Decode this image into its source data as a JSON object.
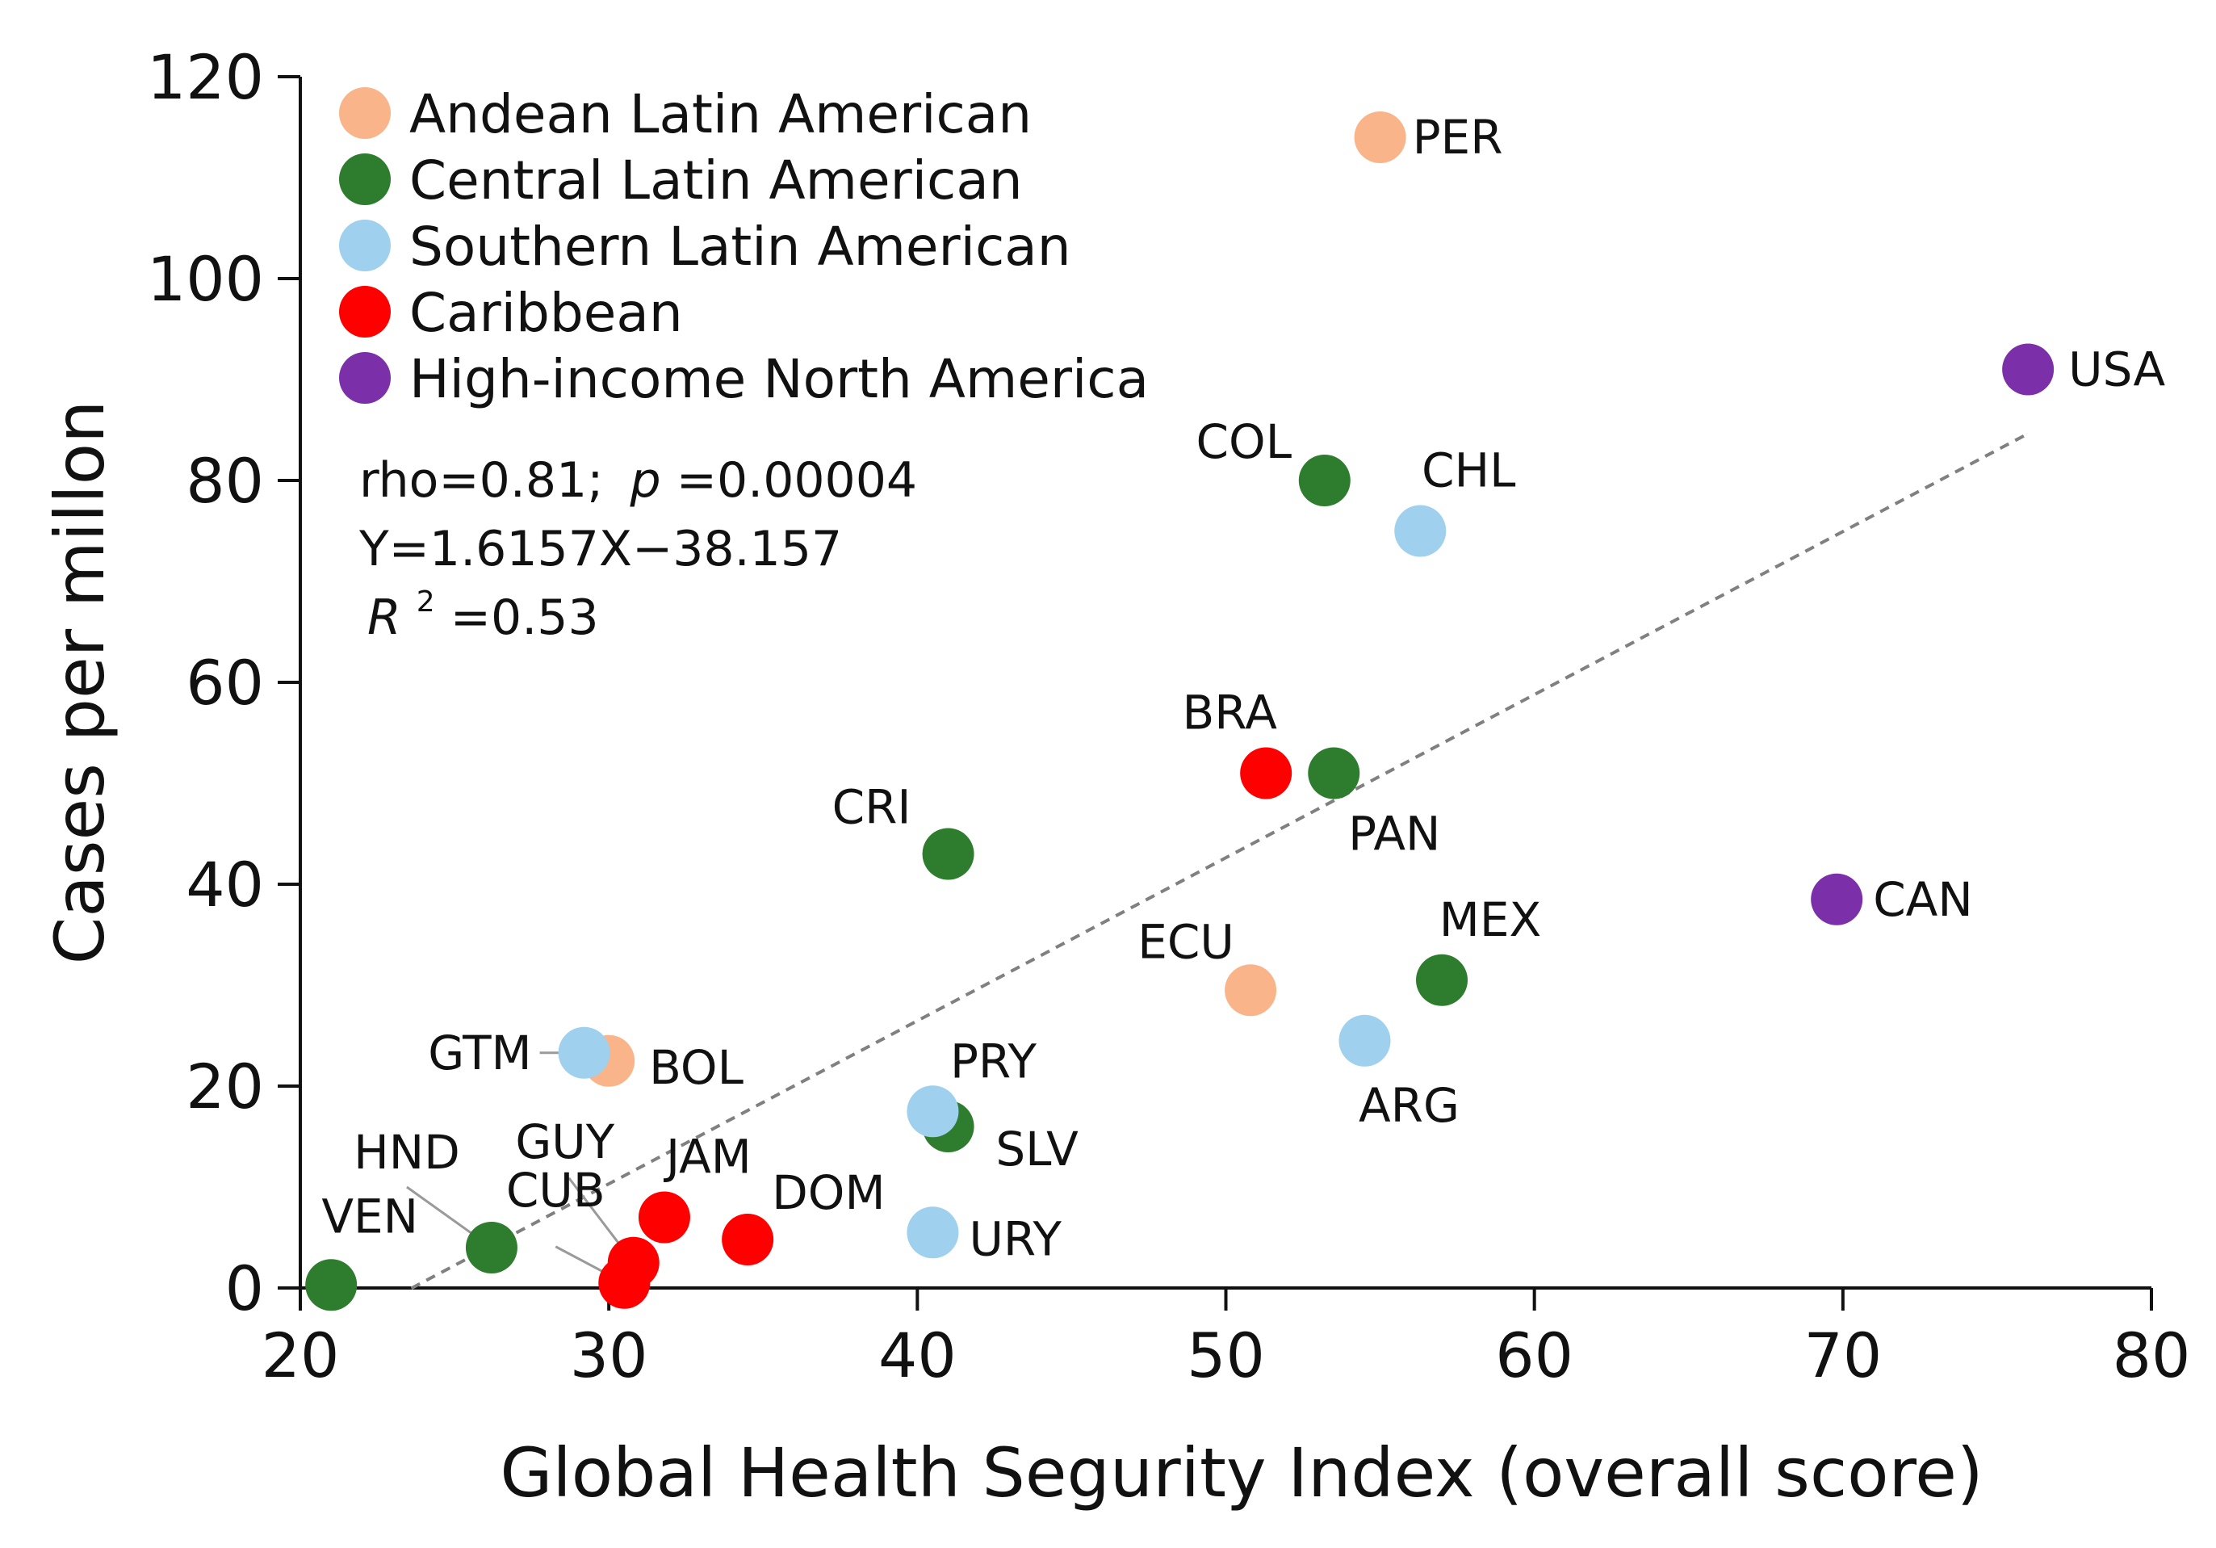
{
  "chart_data": {
    "type": "scatter",
    "xlabel": "Global Health Segurity Index (overall score)",
    "ylabel": "Cases per millon",
    "xlim": [
      20,
      80
    ],
    "ylim": [
      0,
      120
    ],
    "xticks": [
      20,
      30,
      40,
      50,
      60,
      70,
      80
    ],
    "yticks": [
      0,
      20,
      40,
      60,
      80,
      100,
      120
    ],
    "legend_position": "top-left",
    "regions": [
      {
        "name": "Andean Latin American",
        "color": "#F9B48A"
      },
      {
        "name": "Central Latin American",
        "color": "#2E7D2E"
      },
      {
        "name": "Southern Latin American",
        "color": "#9FD0EE"
      },
      {
        "name": "Caribbean",
        "color": "#FF0000"
      },
      {
        "name": "High-income North America",
        "color": "#7B2FA8"
      }
    ],
    "points": [
      {
        "label": "PER",
        "region": 0,
        "x": 55.0,
        "y": 114.0
      },
      {
        "label": "ECU",
        "region": 0,
        "x": 50.8,
        "y": 29.5
      },
      {
        "label": "BOL",
        "region": 0,
        "x": 30.0,
        "y": 22.5
      },
      {
        "label": "COL",
        "region": 1,
        "x": 53.2,
        "y": 80.0
      },
      {
        "label": "PAN",
        "region": 1,
        "x": 53.5,
        "y": 51.0
      },
      {
        "label": "CRI",
        "region": 1,
        "x": 41.0,
        "y": 43.0
      },
      {
        "label": "MEX",
        "region": 1,
        "x": 57.0,
        "y": 30.5
      },
      {
        "label": "SLV",
        "region": 1,
        "x": 41.0,
        "y": 16.0
      },
      {
        "label": "HND",
        "region": 1,
        "x": 26.2,
        "y": 4.0
      },
      {
        "label": "VEN",
        "region": 1,
        "x": 21.0,
        "y": 0.3
      },
      {
        "label": "CHL",
        "region": 2,
        "x": 56.3,
        "y": 75.0
      },
      {
        "label": "ARG",
        "region": 2,
        "x": 54.5,
        "y": 24.5
      },
      {
        "label": "PRY",
        "region": 2,
        "x": 40.5,
        "y": 17.5
      },
      {
        "label": "URY",
        "region": 2,
        "x": 40.5,
        "y": 5.5
      },
      {
        "label": "GTM",
        "region": 2,
        "x": 29.2,
        "y": 23.3
      },
      {
        "label": "BRA",
        "region": 3,
        "x": 51.3,
        "y": 51.0
      },
      {
        "label": "DOM",
        "region": 3,
        "x": 34.5,
        "y": 4.8
      },
      {
        "label": "JAM",
        "region": 3,
        "x": 31.8,
        "y": 7.0
      },
      {
        "label": "GUY",
        "region": 3,
        "x": 30.8,
        "y": 2.5
      },
      {
        "label": "CUB",
        "region": 3,
        "x": 30.5,
        "y": 0.5
      },
      {
        "label": "USA",
        "region": 4,
        "x": 76.0,
        "y": 91.0
      },
      {
        "label": "CAN",
        "region": 4,
        "x": 69.8,
        "y": 38.5
      }
    ],
    "trendline": {
      "slope": 1.6157,
      "intercept": -38.157,
      "x_range": [
        23.6,
        76.0
      ]
    },
    "annotations": {
      "rho": "rho=0.81;",
      "p_symbol": "p",
      "p_value": "=0.00004",
      "equation": "Y=1.6157X−38.157",
      "r2_symbol": "R",
      "r2_sup": "2",
      "r2_value": "=0.53"
    },
    "colors": {
      "axis": "#111111",
      "trendline": "#808080",
      "leader_line": "#9a9a9a"
    }
  }
}
